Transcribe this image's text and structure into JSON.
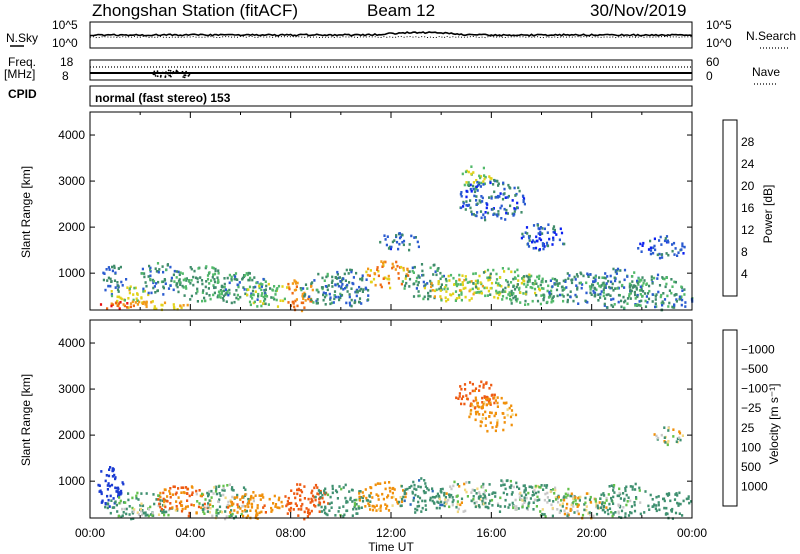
{
  "header": {
    "station": "Zhongshan Station (fitACF)",
    "beam": "Beam 12",
    "date": "30/Nov/2019"
  },
  "top_panels": {
    "nsky_label": "N.Sky",
    "nsky_ticks": [
      "10^5",
      "10^0"
    ],
    "nsearch_label": "N.Search",
    "nsearch_ticks": [
      "10^5",
      "10^0"
    ],
    "freq_label": "Freq.",
    "freq_unit": "[MHz]",
    "freq_ticks": [
      "18",
      "8"
    ],
    "nave_label": "Nave",
    "nave_ticks": [
      "60",
      "0"
    ],
    "cpid_label": "CPID",
    "cpid_text": "normal (fast stereo) 153"
  },
  "chart_data": [
    {
      "type": "heatmap",
      "name": "power",
      "ylabel": "Slant Range [km]",
      "xlabel": "",
      "ylim": [
        200,
        4500
      ],
      "yticks": [
        "1000",
        "2000",
        "3000",
        "4000"
      ],
      "colorbar_label": "Power [dB]",
      "colorbar_ticks": [
        "4",
        "8",
        "12",
        "16",
        "20",
        "24",
        "28"
      ],
      "colorbar_colors": [
        "#0b20f0",
        "#2a5bd0",
        "#3f8c6a",
        "#52b96a",
        "#e2d21a",
        "#f29a1a",
        "#ee6a12",
        "#e81010"
      ],
      "blobs": [
        {
          "t": 0.9,
          "r": 900,
          "dt": 0.5,
          "dr": 350,
          "v": 8
        },
        {
          "t": 1.5,
          "r": 500,
          "dt": 0.9,
          "dr": 250,
          "v": 18
        },
        {
          "t": 1.0,
          "r": 320,
          "dt": 1.0,
          "dr": 80,
          "v": 26
        },
        {
          "t": 3.0,
          "r": 350,
          "dt": 1.0,
          "dr": 120,
          "v": 20
        },
        {
          "t": 2.7,
          "r": 900,
          "dt": 0.9,
          "dr": 350,
          "v": 9
        },
        {
          "t": 4.5,
          "r": 800,
          "dt": 1.2,
          "dr": 400,
          "v": 12
        },
        {
          "t": 6.0,
          "r": 700,
          "dt": 1.1,
          "dr": 350,
          "v": 11
        },
        {
          "t": 7.0,
          "r": 550,
          "dt": 1.0,
          "dr": 300,
          "v": 14
        },
        {
          "t": 8.3,
          "r": 550,
          "dt": 0.6,
          "dr": 350,
          "v": 24
        },
        {
          "t": 9.3,
          "r": 700,
          "dt": 1.0,
          "dr": 350,
          "v": 10
        },
        {
          "t": 10.3,
          "r": 700,
          "dt": 1.0,
          "dr": 400,
          "v": 8
        },
        {
          "t": 11.8,
          "r": 1000,
          "dt": 0.9,
          "dr": 300,
          "v": 22
        },
        {
          "t": 12.3,
          "r": 1700,
          "dt": 1.0,
          "dr": 200,
          "v": 7
        },
        {
          "t": 13.3,
          "r": 850,
          "dt": 0.9,
          "dr": 400,
          "v": 10
        },
        {
          "t": 14.5,
          "r": 700,
          "dt": 1.2,
          "dr": 300,
          "v": 17
        },
        {
          "t": 15.3,
          "r": 3100,
          "dt": 0.7,
          "dr": 250,
          "v": 16
        },
        {
          "t": 16.0,
          "r": 2600,
          "dt": 1.4,
          "dr": 450,
          "v": 7
        },
        {
          "t": 16.5,
          "r": 800,
          "dt": 1.6,
          "dr": 350,
          "v": 15
        },
        {
          "t": 17.5,
          "r": 650,
          "dt": 1.4,
          "dr": 350,
          "v": 12
        },
        {
          "t": 18.0,
          "r": 1800,
          "dt": 1.0,
          "dr": 300,
          "v": 6
        },
        {
          "t": 19.5,
          "r": 700,
          "dt": 1.4,
          "dr": 350,
          "v": 9
        },
        {
          "t": 21.0,
          "r": 700,
          "dt": 1.2,
          "dr": 450,
          "v": 10
        },
        {
          "t": 22.5,
          "r": 600,
          "dt": 1.2,
          "dr": 400,
          "v": 11
        },
        {
          "t": 23.5,
          "r": 450,
          "dt": 0.5,
          "dr": 200,
          "v": 9
        },
        {
          "t": 22.8,
          "r": 1600,
          "dt": 1.0,
          "dr": 250,
          "v": 6
        }
      ]
    },
    {
      "type": "heatmap",
      "name": "velocity",
      "ylabel": "Slant Range [km]",
      "xlabel": "Time UT",
      "ylim": [
        200,
        4500
      ],
      "yticks": [
        "1000",
        "2000",
        "3000",
        "4000"
      ],
      "xticks": [
        "00:00",
        "04:00",
        "08:00",
        "12:00",
        "16:00",
        "20:00",
        "00:00"
      ],
      "colorbar_label": "Velocity [m s⁻¹]",
      "colorbar_ticks": [
        "1000",
        "500",
        "100",
        "25",
        "−25",
        "−100",
        "−500",
        "−1000"
      ],
      "colorbar_colors": [
        "#1a3bd2",
        "#2a6ab8",
        "#3f9070",
        "#62c04a",
        "#c8c8c8",
        "#f2d880",
        "#f0900a",
        "#ee5a12",
        "#e81010"
      ],
      "blobs": [
        {
          "t": 0.7,
          "r": 900,
          "dt": 0.6,
          "dr": 450,
          "v": 900
        },
        {
          "t": 1.8,
          "r": 500,
          "dt": 1.3,
          "dr": 300,
          "v": 120
        },
        {
          "t": 2.4,
          "r": 400,
          "dt": 1.2,
          "dr": 150,
          "v": 60
        },
        {
          "t": 3.7,
          "r": 600,
          "dt": 1.1,
          "dr": 350,
          "v": -300
        },
        {
          "t": 5.3,
          "r": 600,
          "dt": 1.2,
          "dr": 400,
          "v": 80
        },
        {
          "t": 6.5,
          "r": 500,
          "dt": 1.2,
          "dr": 300,
          "v": -200
        },
        {
          "t": 8.5,
          "r": 600,
          "dt": 1.0,
          "dr": 400,
          "v": -600
        },
        {
          "t": 10.0,
          "r": 600,
          "dt": 1.2,
          "dr": 350,
          "v": 150
        },
        {
          "t": 11.6,
          "r": 700,
          "dt": 1.0,
          "dr": 350,
          "v": -150
        },
        {
          "t": 13.2,
          "r": 700,
          "dt": 1.1,
          "dr": 400,
          "v": 200
        },
        {
          "t": 14.8,
          "r": 700,
          "dt": 1.0,
          "dr": 350,
          "v": 50
        },
        {
          "t": 15.4,
          "r": 2900,
          "dt": 0.9,
          "dr": 300,
          "v": -400
        },
        {
          "t": 16.0,
          "r": 2500,
          "dt": 1.0,
          "dr": 400,
          "v": -150
        },
        {
          "t": 16.5,
          "r": 700,
          "dt": 1.4,
          "dr": 350,
          "v": 120
        },
        {
          "t": 18.2,
          "r": 600,
          "dt": 1.3,
          "dr": 350,
          "v": 60
        },
        {
          "t": 19.5,
          "r": 500,
          "dt": 1.2,
          "dr": 300,
          "v": -20
        },
        {
          "t": 21.3,
          "r": 600,
          "dt": 1.2,
          "dr": 400,
          "v": 120
        },
        {
          "t": 23.2,
          "r": 500,
          "dt": 0.9,
          "dr": 300,
          "v": 180
        },
        {
          "t": 23.0,
          "r": 2000,
          "dt": 0.6,
          "dr": 200,
          "v": 15
        }
      ]
    }
  ]
}
